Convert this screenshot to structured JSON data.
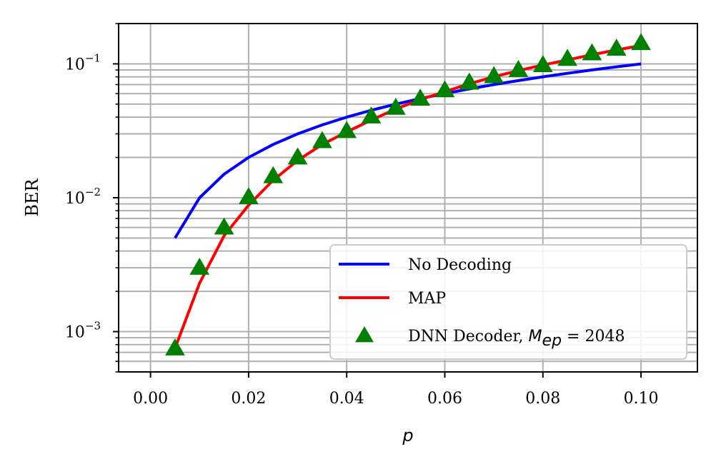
{
  "chart_data": {
    "type": "line",
    "xlabel": "p",
    "ylabel": "BER",
    "xlim": [
      -0.0065,
      0.1115
    ],
    "ylim": [
      0.0005,
      0.2
    ],
    "yscale": "log",
    "grid": true,
    "legend_position": "bottom-right",
    "x_ticks": [
      0.0,
      0.02,
      0.04,
      0.06,
      0.08,
      0.1
    ],
    "x_tick_labels": [
      "0.00",
      "0.02",
      "0.04",
      "0.06",
      "0.08",
      "0.10"
    ],
    "y_ticks": [
      {
        "value": 0.1,
        "base": "10",
        "exp": "−1"
      },
      {
        "value": 0.01,
        "base": "10",
        "exp": "−2"
      },
      {
        "value": 0.001,
        "base": "10",
        "exp": "−3"
      }
    ],
    "series": [
      {
        "name": "No Decoding",
        "color": "#0000ff",
        "style": "line",
        "x": [
          0.005,
          0.01,
          0.015,
          0.02,
          0.025,
          0.03,
          0.035,
          0.04,
          0.045,
          0.05,
          0.055,
          0.06,
          0.065,
          0.07,
          0.075,
          0.08,
          0.085,
          0.09,
          0.095,
          0.1
        ],
        "y": [
          0.005,
          0.01,
          0.015,
          0.02,
          0.025,
          0.03,
          0.035,
          0.04,
          0.045,
          0.05,
          0.055,
          0.06,
          0.065,
          0.07,
          0.075,
          0.08,
          0.085,
          0.09,
          0.095,
          0.1
        ]
      },
      {
        "name": "MAP",
        "color": "#ff0000",
        "style": "line",
        "x": [
          0.005,
          0.01,
          0.015,
          0.02,
          0.025,
          0.03,
          0.035,
          0.04,
          0.045,
          0.05,
          0.055,
          0.06,
          0.065,
          0.07,
          0.075,
          0.08,
          0.085,
          0.09,
          0.095,
          0.1
        ],
        "y": [
          0.00075,
          0.0023,
          0.0052,
          0.0088,
          0.0135,
          0.019,
          0.025,
          0.031,
          0.038,
          0.046,
          0.054,
          0.062,
          0.071,
          0.08,
          0.089,
          0.098,
          0.107,
          0.117,
          0.127,
          0.137
        ]
      },
      {
        "name_text": "DNN Decoder, ",
        "name_math_base": "M",
        "name_math_sub": "ep",
        "name_math_rest": " = 2048",
        "color": "#008000",
        "style": "triangle-marker",
        "x": [
          0.005,
          0.01,
          0.015,
          0.02,
          0.025,
          0.03,
          0.035,
          0.04,
          0.045,
          0.05,
          0.055,
          0.06,
          0.065,
          0.07,
          0.075,
          0.08,
          0.085,
          0.09,
          0.095,
          0.1
        ],
        "y": [
          0.00075,
          0.003,
          0.006,
          0.0101,
          0.0145,
          0.02,
          0.0265,
          0.0315,
          0.0405,
          0.047,
          0.055,
          0.0635,
          0.0725,
          0.081,
          0.09,
          0.098,
          0.109,
          0.12,
          0.13,
          0.143
        ]
      }
    ]
  }
}
